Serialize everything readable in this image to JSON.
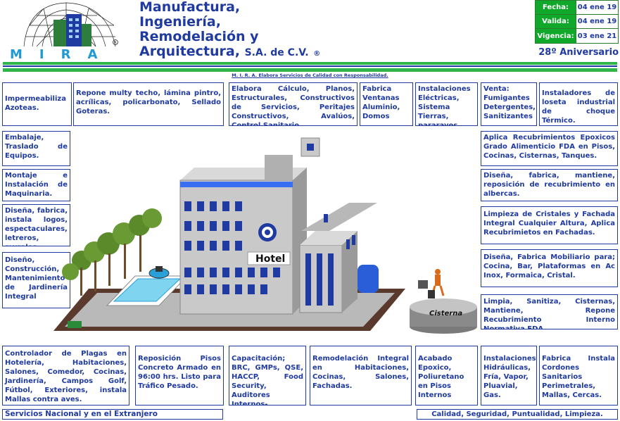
{
  "header": {
    "logo_text": "MIRA",
    "title_lines": [
      "Manufactura,",
      "Ingeniería,",
      "Remodelación y"
    ],
    "title_last": "Arquitectura,",
    "title_suffix": "S.A. de C.V.",
    "registered": "®",
    "anniversary": "28º Aniversario",
    "tagline": "M. I. R. A.  Elabora Servicios de Calidad con Responsabilidad."
  },
  "dates": [
    {
      "label": "Fecha:",
      "value": "04 ene 19"
    },
    {
      "label": "Valida:",
      "value": "04 ene 19"
    },
    {
      "label": "Vigencia:",
      "value": "03 ene 21"
    }
  ],
  "services": {
    "top": [
      "Impermeabiliza Azoteas.",
      "Repone multy techo, lámina pintro, acrílicas, policarbonato, Sellado Goteras.",
      "Elabora Cálculo, Planos, Estructurales, Constructivos de Servicios, Peritajes Constructivos, Avalúos, Control Sanitario.",
      "Fabrica Ventanas Aluminio, Domos",
      "Instalaciones Eléctricas, Sistema Tierras, pararayos",
      "Venta: Fumigantes Detergentes, Sanitizantes",
      "Instaladores de loseta industrial de choque Térmico."
    ],
    "left": [
      "Embalaje, Traslado de Equipos.",
      "Montaje e Instalación de Maquinaria.",
      "Diseña, fabrica, instala logos, espectaculares, letreros, murales.",
      "Diseño, Construcción, Mantenimiento de Jardinería Integral"
    ],
    "right": [
      "Aplica Recubrimientos Epoxicos Grado Alimenticio FDA en Pisos, Cocinas, Cisternas, Tanques.",
      "Diseña, fabrica, mantiene, reposición de recubrimiento en albercas.",
      "Limpieza de Cristales y Fachada Integral Cualquier Altura, Aplica Recubrimietos en Fachadas.",
      "Diseña, Fabrica Mobiliario para; Cocina, Bar, Plataformas en Ac Inox, Formaica, Cristal.",
      "Limpia, Sanitiza, Cisternas, Mantiene, Repone Recubrimiento Interno Normativa FDA."
    ],
    "bottom": [
      "Controlador de Plagas en Hotelería, Habitaciones, Salones, Comedor, Cocinas, Jardinería, Campos Golf, Fútbol, Exteriores, instala Mallas contra aves.",
      "Reposición Pisos Concreto Armado en 96:00 hrs. Listo para Tráfico Pesado.",
      "Capacitación; BRC, GMPs, QSE, HACCP, Food Security, Auditores Internos-",
      "Remodelación Integral en Habitaciones, Cocinas, Salones, Fachadas.",
      "Acabado Epoxico, Poliuretano en Pisos Internos",
      "Instalaciones Hidráulicas, Fría, Vapor, Pluavial, Gas.",
      "Fabrica Instala Cordones Sanitarios Perimetrales, Mallas, Cercas."
    ]
  },
  "illustration": {
    "hotel_sign": "Hotel",
    "cistern_label": "Cisterna"
  },
  "footer": {
    "left": "Servicios Nacional y en el Extranjero",
    "right": "Calidad, Seguridad, Puntualidad, Limpieza."
  },
  "colors": {
    "brand_blue": "#1f3aa0",
    "brand_green": "#0fa82a"
  }
}
